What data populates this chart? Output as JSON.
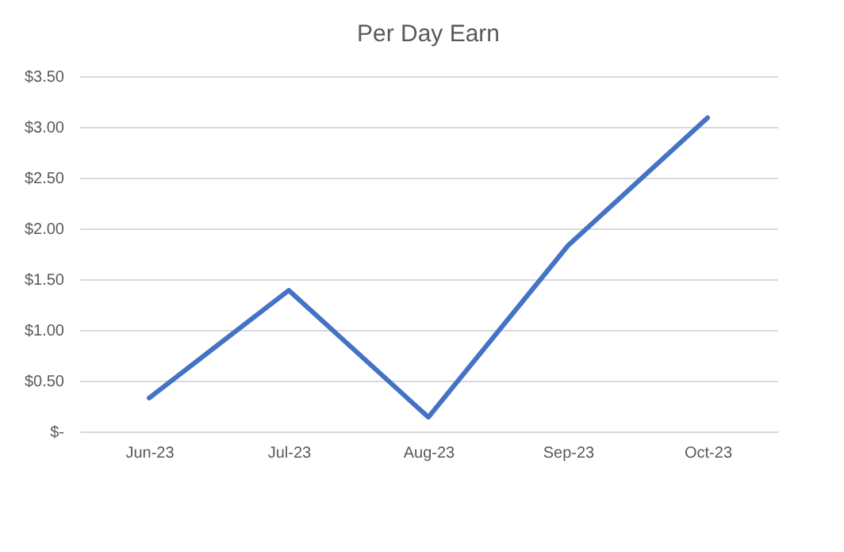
{
  "chart_data": {
    "type": "line",
    "title": "Per Day Earn",
    "categories": [
      "Jun-23",
      "Jul-23",
      "Aug-23",
      "Sep-23",
      "Oct-23"
    ],
    "series": [
      {
        "color": "#4472c4",
        "values": [
          0.33,
          1.39,
          0.14,
          1.83,
          3.09
        ]
      }
    ],
    "ylim": [
      0,
      3.5
    ],
    "yticks": [
      {
        "value": 0,
        "label": "$-"
      },
      {
        "value": 0.5,
        "label": "$0.50"
      },
      {
        "value": 1,
        "label": "$1.00"
      },
      {
        "value": 1.5,
        "label": "$1.50"
      },
      {
        "value": 2,
        "label": "$2.00"
      },
      {
        "value": 2.5,
        "label": "$2.50"
      },
      {
        "value": 3,
        "label": "$3.00"
      },
      {
        "value": 3.5,
        "label": "$3.50"
      }
    ],
    "grid": "y",
    "marker": "none",
    "line_style": "solid"
  }
}
